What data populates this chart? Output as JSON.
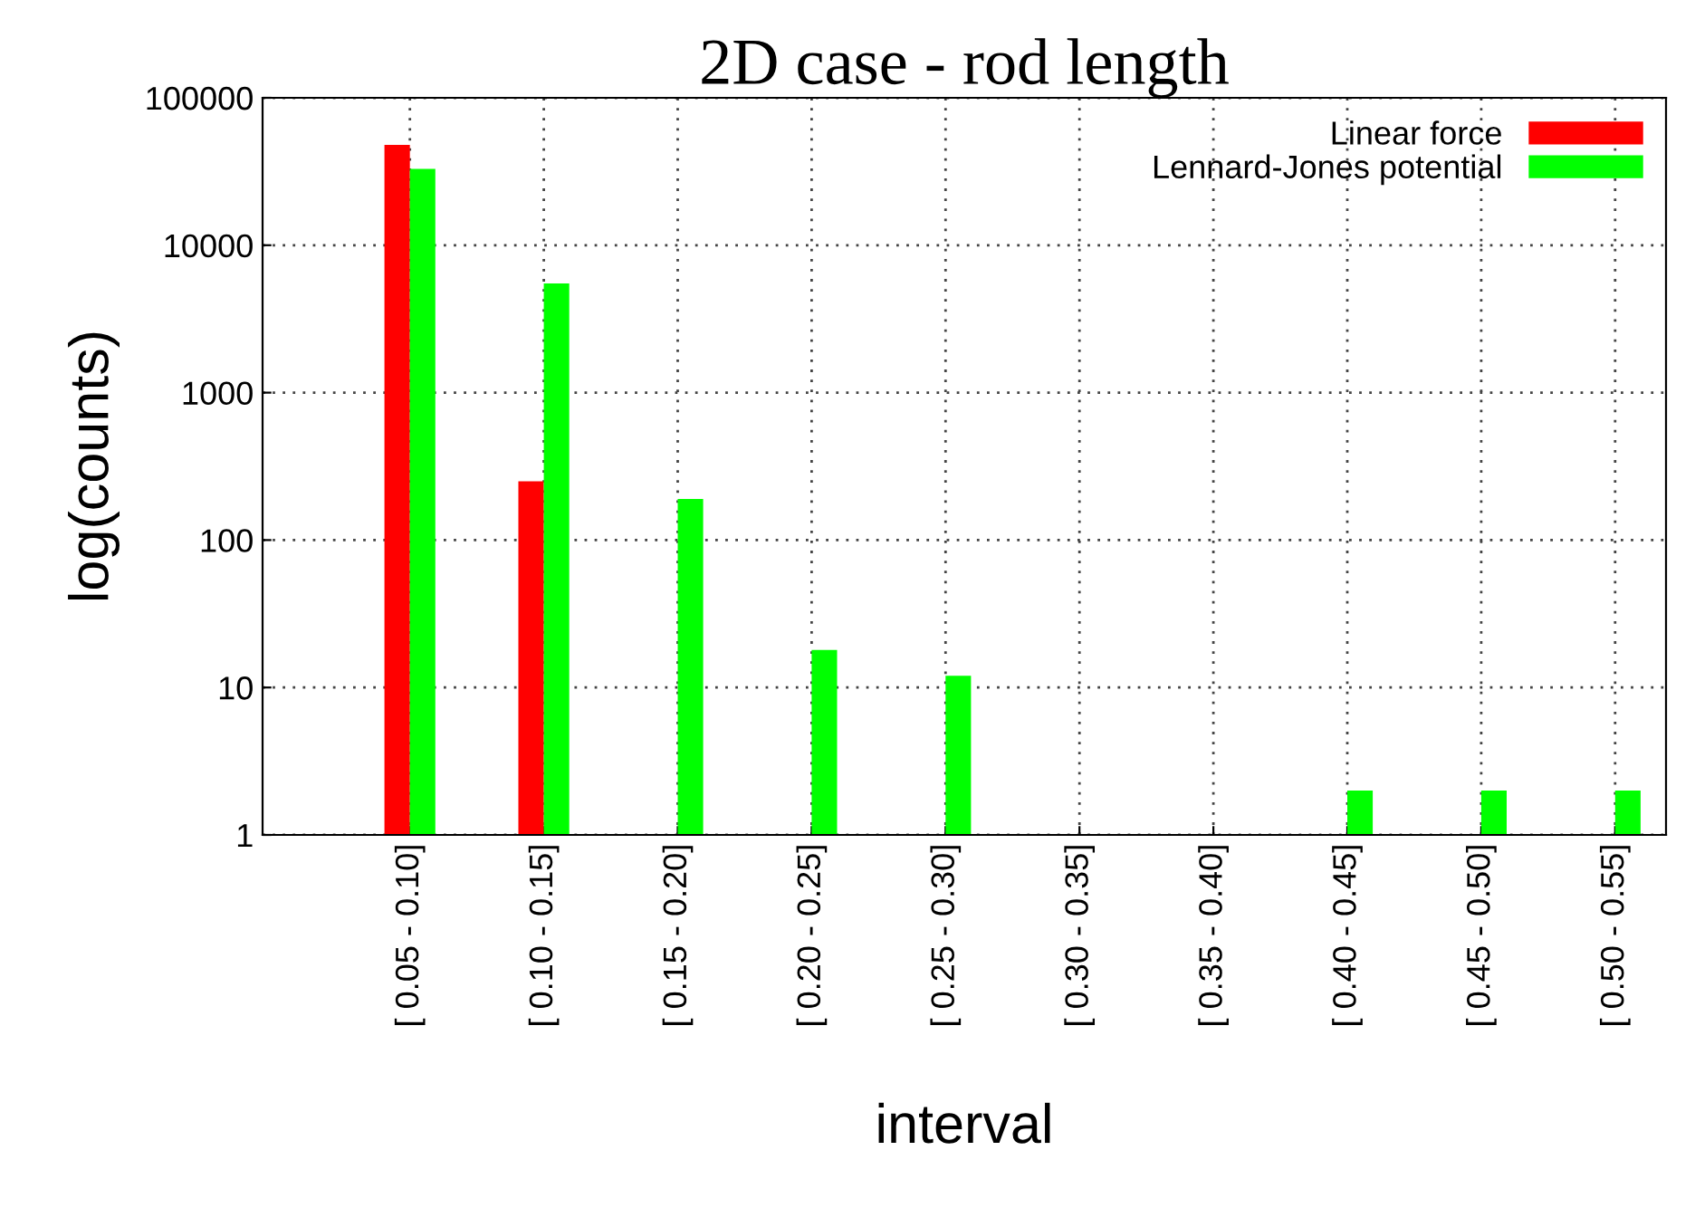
{
  "chart_data": {
    "type": "bar",
    "title": "2D case - rod length",
    "xlabel": "interval",
    "ylabel": "log(counts)",
    "categories": [
      "[ 0.05 - 0.10]",
      "[ 0.10 - 0.15]",
      "[ 0.15 - 0.20]",
      "[ 0.20 - 0.25]",
      "[ 0.25 - 0.30]",
      "[ 0.30 - 0.35]",
      "[ 0.35 - 0.40]",
      "[ 0.40 - 0.45]",
      "[ 0.45 - 0.50]",
      "[ 0.50 - 0.55]"
    ],
    "series": [
      {
        "name": "Linear force",
        "color": "#ff0000",
        "values": [
          48000,
          250,
          null,
          null,
          null,
          null,
          null,
          null,
          null,
          null
        ]
      },
      {
        "name": "Lennard-Jones potential",
        "color": "#00ff00",
        "values": [
          33000,
          5500,
          190,
          18,
          12,
          null,
          null,
          2,
          2,
          2
        ]
      }
    ],
    "log": "y",
    "ylim": [
      1,
      100000
    ],
    "yticks": [
      1,
      10,
      100,
      1000,
      10000,
      100000
    ],
    "grid": true,
    "legend": "top right"
  }
}
